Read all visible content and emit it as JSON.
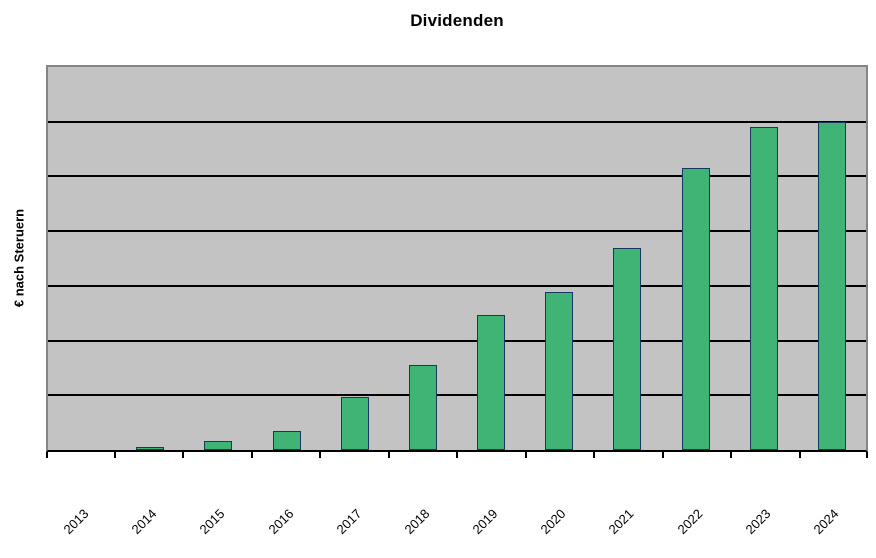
{
  "chart_data": {
    "type": "bar",
    "title": "Dividenden",
    "xlabel": "",
    "ylabel": "€ nach Steruern",
    "categories": [
      "2013",
      "2014",
      "2015",
      "2016",
      "2017",
      "2018",
      "2019",
      "2020",
      "2021",
      "2022",
      "2023",
      "2024"
    ],
    "values": [
      0,
      0.06,
      0.16,
      0.35,
      0.96,
      1.56,
      2.47,
      2.88,
      3.7,
      5.15,
      5.91,
      6.0
    ],
    "ylim": [
      0,
      7
    ],
    "y_gridline_interval": 1,
    "y_tick_labels": [],
    "legend": "none",
    "grid": "horizontal",
    "note": "y-axis shows no numeric tick labels; bar values estimated in gridline units (7 equal intervals)",
    "colors": {
      "bar_fill": "#3fb475",
      "bar_border": "#17375e",
      "plot_background": "#c3c3c3",
      "plot_border": "#858585",
      "gridline": "#000000",
      "axis": "#000000",
      "text": "#000000",
      "page_background": "#ffffff"
    }
  }
}
